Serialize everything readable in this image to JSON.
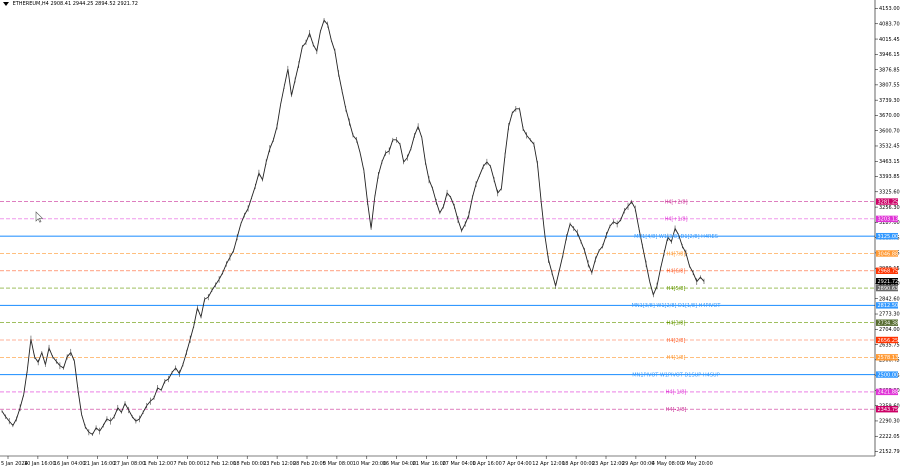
{
  "header": {
    "symbol": "ETHEREUM,H4",
    "ohlc": "2908.41 2944.25 2894.52 2921.72"
  },
  "chart_data": {
    "type": "line",
    "title": "",
    "xlabel": "",
    "ylabel": "",
    "ylim": [
      2152.79,
      4153.0
    ],
    "x_ticks": [
      "5 Jan 2024",
      "10 Jan 16:00",
      "16 Jan 04:00",
      "21 Jan 16:00",
      "27 Jan 08:00",
      "1 Feb 12:00",
      "7 Feb 00:00",
      "12 Feb 12:00",
      "18 Feb 00:00",
      "23 Feb 12:00",
      "28 Feb 20:00",
      "5 Mar 08:00",
      "10 Mar 20:00",
      "16 Mar 04:00",
      "21 Mar 16:00",
      "27 Mar 04:00",
      "1 Apr 16:00",
      "7 Apr 04:00",
      "12 Apr 12:00",
      "18 Apr 00:00",
      "23 Apr 12:00",
      "29 Apr 00:00",
      "4 May 08:00",
      "9 May 20:00"
    ],
    "y_ticks": [
      "4153.00",
      "4083.70",
      "4015.45",
      "3946.15",
      "3876.85",
      "3807.55",
      "3739.30",
      "3670.00",
      "3600.70",
      "3532.45",
      "3463.15",
      "3393.85",
      "3325.60",
      "3256.30",
      "3187.00",
      "3118.75",
      "3049.45",
      "2980.15",
      "2911.90",
      "2842.60",
      "2773.30",
      "2704.00",
      "2635.75",
      "2566.45",
      "2497.15",
      "2428.90",
      "2359.60",
      "2290.30",
      "2222.05",
      "2152.79"
    ],
    "series": [
      {
        "values": [
          2335,
          2310,
          2290,
          2270,
          2300,
          2350,
          2410,
          2520,
          2660,
          2580,
          2555,
          2600,
          2545,
          2620,
          2580,
          2560,
          2540,
          2530,
          2580,
          2600,
          2560,
          2430,
          2320,
          2265,
          2240,
          2230,
          2260,
          2245,
          2270,
          2300,
          2290,
          2310,
          2350,
          2330,
          2370,
          2340,
          2310,
          2290,
          2300,
          2330,
          2360,
          2380,
          2395,
          2440,
          2430,
          2470,
          2480,
          2510,
          2530,
          2505,
          2545,
          2600,
          2660,
          2720,
          2800,
          2760,
          2840,
          2850,
          2880,
          2905,
          2930,
          2960,
          3000,
          3030,
          3060,
          3120,
          3180,
          3220,
          3250,
          3300,
          3350,
          3410,
          3380,
          3460,
          3520,
          3560,
          3620,
          3720,
          3800,
          3880,
          3760,
          3830,
          3900,
          3980,
          4000,
          4040,
          3990,
          3960,
          4050,
          4100,
          4080,
          4010,
          3960,
          3860,
          3780,
          3700,
          3640,
          3580,
          3560,
          3500,
          3420,
          3280,
          3160,
          3300,
          3400,
          3460,
          3500,
          3510,
          3560,
          3560,
          3540,
          3460,
          3480,
          3520,
          3580,
          3620,
          3570,
          3460,
          3380,
          3340,
          3280,
          3230,
          3260,
          3320,
          3300,
          3260,
          3200,
          3150,
          3180,
          3220,
          3300,
          3360,
          3400,
          3440,
          3460,
          3440,
          3380,
          3320,
          3340,
          3490,
          3620,
          3680,
          3700,
          3700,
          3610,
          3580,
          3560,
          3540,
          3450,
          3280,
          3130,
          3020,
          2960,
          2900,
          2970,
          3040,
          3120,
          3180,
          3160,
          3140,
          3100,
          3060,
          3000,
          2960,
          3020,
          3060,
          3080,
          3130,
          3170,
          3190,
          3180,
          3200,
          3240,
          3260,
          3280,
          3250,
          3160,
          3080,
          3000,
          2920,
          2860,
          2900,
          2980,
          3050,
          3120,
          3100,
          3160,
          3130,
          3080,
          3050,
          2990,
          2960,
          2920,
          2940,
          2921
        ]
      }
    ],
    "levels": [
      {
        "label": "H4[+2/8]",
        "price": 3281.25,
        "color": "#cc3399",
        "tag_color": "#cc0066"
      },
      {
        "label": "H4[+1/8]",
        "price": 3203.13,
        "color": "#e033d6",
        "tag_color": "#e033d6"
      },
      {
        "label": "MN1[4/8] W1[3/8] D1[2/8] H4RES",
        "price": 3125.0,
        "color": "#3399ff",
        "tag_color": "#3399ff"
      },
      {
        "label": "H4[7/8]",
        "price": 3046.88,
        "color": "#ff9933",
        "tag_color": "#ff9933"
      },
      {
        "label": "H4[6/8]",
        "price": 2968.75,
        "color": "#ff6633",
        "tag_color": "#ff3300"
      },
      {
        "label": "H4[5/8]",
        "price": 2890.63,
        "color": "#669900",
        "tag_color": "#666666"
      },
      {
        "label": "MN1[3/8] W1[2/8] D1[1/8] H4PIVOT",
        "price": 2812.5,
        "color": "#3399ff",
        "tag_color": "#3399ff"
      },
      {
        "label": "H4[3/8]",
        "price": 2734.38,
        "color": "#669900",
        "tag_color": "#556b2f"
      },
      {
        "label": "H4[2/8]",
        "price": 2656.25,
        "color": "#ff6633",
        "tag_color": "#ff3300"
      },
      {
        "label": "H4[1/8]",
        "price": 2578.13,
        "color": "#ff9933",
        "tag_color": "#ff9933"
      },
      {
        "label": "MN1PIVOT W1PIVOT D1SUP H4SUP",
        "price": 2500.0,
        "color": "#3399ff",
        "tag_color": "#3399ff"
      },
      {
        "label": "H4[-1/8]",
        "price": 2421.88,
        "color": "#e033d6",
        "tag_color": "#e033d6"
      },
      {
        "label": "H4[-2/8]",
        "price": 2343.75,
        "color": "#cc3399",
        "tag_color": "#cc0066"
      }
    ],
    "price_tags": [
      {
        "text": "3281.25",
        "price": 3281.25,
        "color": "#cc0066"
      },
      {
        "text": "3203.13",
        "price": 3203.13,
        "color": "#e033d6"
      },
      {
        "text": "3125.00",
        "price": 3125.0,
        "color": "#3399ff"
      },
      {
        "text": "3046.88",
        "price": 3046.88,
        "color": "#ff9933"
      },
      {
        "text": "2968.75",
        "price": 2968.75,
        "color": "#ff3300"
      },
      {
        "text": "2921.72",
        "price": 2921.72,
        "color": "#000000"
      },
      {
        "text": "2890.63",
        "price": 2890.63,
        "color": "#666666"
      },
      {
        "text": "2812.50",
        "price": 2812.5,
        "color": "#3399ff"
      },
      {
        "text": "2734.38",
        "price": 2734.38,
        "color": "#556b2f"
      },
      {
        "text": "2656.25",
        "price": 2656.25,
        "color": "#ff3300"
      },
      {
        "text": "2578.13",
        "price": 2578.13,
        "color": "#ff9933"
      },
      {
        "text": "2500.00",
        "price": 2500.0,
        "color": "#3399ff"
      },
      {
        "text": "2421.88",
        "price": 2421.88,
        "color": "#e033d6"
      },
      {
        "text": "2343.75",
        "price": 2343.75,
        "color": "#cc0066"
      }
    ],
    "grid": false,
    "legend": "none"
  }
}
